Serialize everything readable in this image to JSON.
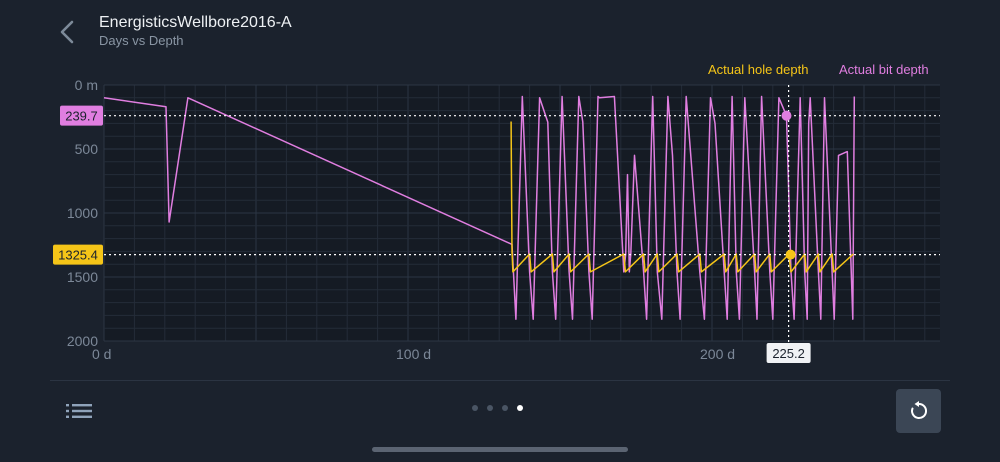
{
  "header": {
    "back_icon": "chevron-left-icon",
    "title": "EnergisticsWellbore2016-A",
    "subtitle": "Days vs Depth"
  },
  "legend": {
    "hole_label": "Actual hole depth",
    "bit_label": "Actual bit depth"
  },
  "colors": {
    "background": "#1b222d",
    "plot_background": "#151b24",
    "hole": "#f5c518",
    "bit": "#e07ee0",
    "grid": "#242c38"
  },
  "chart_data": {
    "type": "line",
    "xlim": [
      0,
      275
    ],
    "ylim": [
      2000,
      0
    ],
    "x_ticks": [
      {
        "value": 0,
        "label": "0 d"
      },
      {
        "value": 100,
        "label": "100 d"
      },
      {
        "value": 200,
        "label": "200 d"
      }
    ],
    "y_ticks": [
      {
        "value": 0,
        "label": "0 m"
      },
      {
        "value": 500,
        "label": "500"
      },
      {
        "value": 1000,
        "label": "1000"
      },
      {
        "value": 1500,
        "label": "1500"
      },
      {
        "value": 2000,
        "label": "2000"
      }
    ],
    "grid": true,
    "legend_position": "top-right",
    "cursor": {
      "x": 225.2,
      "x_label": "225.2",
      "bit_y": 239.7,
      "bit_label": "239.7",
      "hole_y": 1325.4,
      "hole_label": "1325.4"
    },
    "series": [
      {
        "name": "Actual hole depth",
        "points": [
          [
            133.9,
            285
          ],
          [
            134.0,
            650
          ],
          [
            134.2,
            1300
          ],
          [
            134.5,
            1460
          ],
          [
            140.0,
            1320
          ],
          [
            140.5,
            1460
          ],
          [
            147.5,
            1320
          ],
          [
            148.0,
            1460
          ],
          [
            153.0,
            1320
          ],
          [
            153.5,
            1460
          ],
          [
            159.5,
            1320
          ],
          [
            160.0,
            1460
          ],
          [
            171.0,
            1320
          ],
          [
            171.5,
            1460
          ],
          [
            177.5,
            1320
          ],
          [
            178.0,
            1460
          ],
          [
            182.0,
            1320
          ],
          [
            182.5,
            1460
          ],
          [
            188.5,
            1320
          ],
          [
            189.0,
            1460
          ],
          [
            196.0,
            1320
          ],
          [
            196.5,
            1460
          ],
          [
            204.0,
            1320
          ],
          [
            204.5,
            1460
          ],
          [
            208.0,
            1320
          ],
          [
            208.5,
            1460
          ],
          [
            214.0,
            1320
          ],
          [
            214.5,
            1460
          ],
          [
            219.0,
            1320
          ],
          [
            219.5,
            1460
          ],
          [
            225.2,
            1325.4
          ],
          [
            226.0,
            1460
          ],
          [
            230.5,
            1320
          ],
          [
            231.0,
            1460
          ],
          [
            235.0,
            1320
          ],
          [
            235.5,
            1460
          ],
          [
            239.5,
            1320
          ],
          [
            240.0,
            1460
          ],
          [
            246.5,
            1320
          ]
        ]
      },
      {
        "name": "Actual bit depth",
        "points": [
          [
            0,
            100
          ],
          [
            20.4,
            170
          ],
          [
            21.4,
            1070
          ],
          [
            27.6,
            100
          ],
          [
            134.2,
            1245
          ],
          [
            135.5,
            1830
          ],
          [
            137.6,
            90
          ],
          [
            140.0,
            1460
          ],
          [
            141.2,
            1830
          ],
          [
            143.3,
            100
          ],
          [
            146.0,
            290
          ],
          [
            147.5,
            1460
          ],
          [
            148.6,
            1830
          ],
          [
            150.7,
            90
          ],
          [
            153.0,
            1460
          ],
          [
            154.1,
            1830
          ],
          [
            156.2,
            90
          ],
          [
            157.5,
            290
          ],
          [
            159.5,
            1460
          ],
          [
            160.6,
            1830
          ],
          [
            162.5,
            90
          ],
          [
            163.0,
            100
          ],
          [
            167.9,
            90
          ],
          [
            171.0,
            1460
          ],
          [
            171.6,
            1320
          ],
          [
            172.2,
            700
          ],
          [
            172.8,
            1460
          ],
          [
            173.3,
            1320
          ],
          [
            174.5,
            550
          ],
          [
            177.5,
            1460
          ],
          [
            178.5,
            1830
          ],
          [
            180.5,
            90
          ],
          [
            182.0,
            1460
          ],
          [
            183.5,
            1830
          ],
          [
            185.5,
            90
          ],
          [
            187.0,
            550
          ],
          [
            188.5,
            1460
          ],
          [
            189.5,
            1830
          ],
          [
            191.5,
            90
          ],
          [
            196.0,
            1460
          ],
          [
            197.5,
            1830
          ],
          [
            199.5,
            100
          ],
          [
            201.0,
            300
          ],
          [
            204.0,
            1460
          ],
          [
            205.0,
            1830
          ],
          [
            206.6,
            90
          ],
          [
            208.0,
            1460
          ],
          [
            209.0,
            1830
          ],
          [
            210.8,
            100
          ],
          [
            214.0,
            1460
          ],
          [
            214.8,
            1830
          ],
          [
            216.3,
            90
          ],
          [
            219.0,
            1460
          ],
          [
            220.0,
            1830
          ],
          [
            222.0,
            100
          ],
          [
            224.5,
            239.7
          ],
          [
            226.0,
            1460
          ],
          [
            227.0,
            1830
          ],
          [
            229.0,
            100
          ],
          [
            230.5,
            1460
          ],
          [
            231.3,
            1830
          ],
          [
            231.8,
            300
          ],
          [
            232.3,
            100
          ],
          [
            235.0,
            1460
          ],
          [
            235.8,
            1830
          ],
          [
            237.0,
            100
          ],
          [
            239.5,
            1460
          ],
          [
            240.2,
            1830
          ],
          [
            241.6,
            550
          ],
          [
            244.5,
            520
          ],
          [
            246.3,
            1830
          ],
          [
            246.8,
            90
          ]
        ]
      }
    ]
  },
  "footer": {
    "list_icon": "list-icon",
    "page_count": 4,
    "active_page": 4,
    "refresh_icon": "refresh-icon"
  }
}
